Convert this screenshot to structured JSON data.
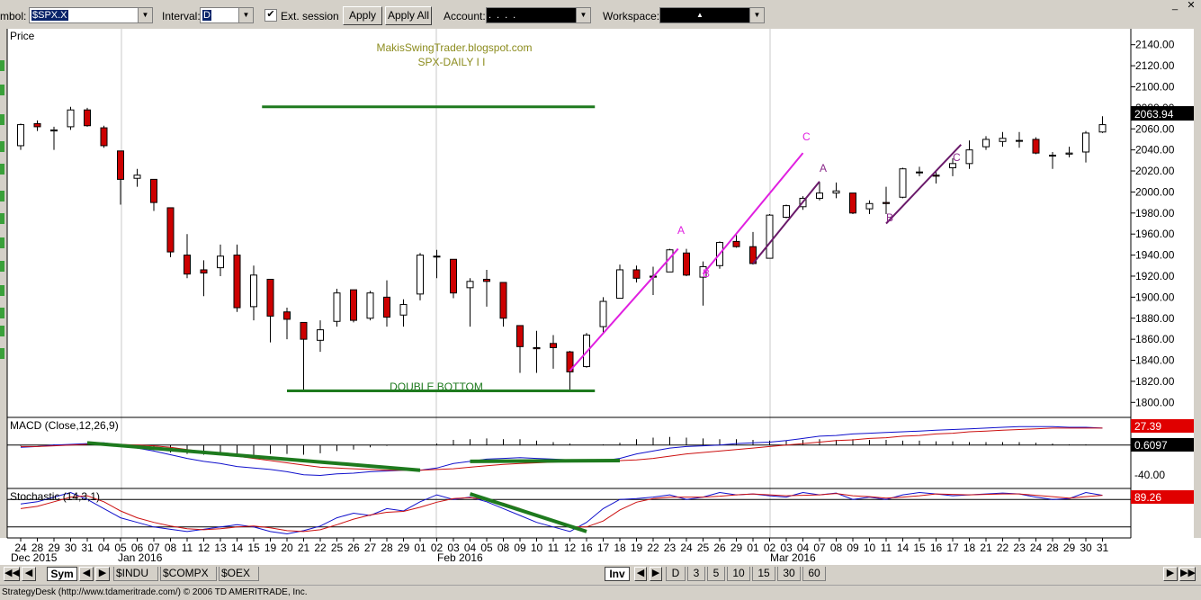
{
  "toolbar": {
    "symbol_label": "mbol:",
    "symbol_value": "$SPX.X",
    "interval_label": "Interval:",
    "interval_value": "D",
    "ext_session_label": "Ext. session",
    "ext_session_checked": "✔",
    "apply_label": "Apply",
    "apply_all_label": "Apply All",
    "account_label": "Account:",
    "account_value": "....",
    "workspace_label": "Workspace:",
    "workspace_value": "▲"
  },
  "chart_data": [
    {
      "type": "candlestick",
      "title": "Price",
      "annotations": [
        "MakisSwingTrader.blogspot.com",
        "SPX-DAILY  I I",
        "DOUBLE BOTTOM"
      ],
      "wave_labels": [
        "A",
        "B",
        "C",
        "A",
        "B",
        "C"
      ],
      "last_price": "2063.94",
      "ylim": [
        1790,
        2150
      ],
      "y_ticks": [
        2140,
        2120,
        2100,
        2080,
        2060,
        2040,
        2020,
        2000,
        1980,
        1960,
        1940,
        1920,
        1900,
        1880,
        1860,
        1840,
        1820,
        1800
      ],
      "y_tick_labels": [
        "2140.00",
        "2120.00",
        "2100.00",
        "2080.00",
        "2060.00",
        "2040.00",
        "2020.00",
        "2000.00",
        "1980.00",
        "1960.00",
        "1940.00",
        "1920.00",
        "1900.00",
        "1880.00",
        "1860.00",
        "1840.00",
        "1820.00",
        "1800.00"
      ],
      "x_ticks": [
        "24",
        "28",
        "29",
        "30",
        "31",
        "04",
        "05",
        "06",
        "07",
        "08",
        "11",
        "12",
        "13",
        "14",
        "15",
        "19",
        "20",
        "21",
        "22",
        "25",
        "26",
        "27",
        "28",
        "29",
        "01",
        "02",
        "03",
        "04",
        "05",
        "08",
        "09",
        "10",
        "11",
        "12",
        "16",
        "17",
        "18",
        "19",
        "22",
        "23",
        "24",
        "25",
        "26",
        "29",
        "01",
        "02",
        "03",
        "04",
        "07",
        "08",
        "09",
        "10",
        "11",
        "14",
        "15",
        "16",
        "17",
        "18",
        "21",
        "22",
        "23",
        "24",
        "28",
        "29",
        "30",
        "31"
      ],
      "month_labels": [
        "Dec 2015",
        "Jan 2016",
        "Feb 2016",
        "Mar 2016"
      ],
      "candles": [
        {
          "o": 2044,
          "h": 2065,
          "l": 2040,
          "c": 2064
        },
        {
          "o": 2065,
          "h": 2068,
          "l": 2058,
          "c": 2062
        },
        {
          "o": 2058,
          "h": 2062,
          "l": 2040,
          "c": 2059
        },
        {
          "o": 2062,
          "h": 2081,
          "l": 2059,
          "c": 2078
        },
        {
          "o": 2078,
          "h": 2080,
          "l": 2062,
          "c": 2063
        },
        {
          "o": 2061,
          "h": 2063,
          "l": 2042,
          "c": 2044
        },
        {
          "o": 2039,
          "h": 2039,
          "l": 1988,
          "c": 2012
        },
        {
          "o": 2013,
          "h": 2022,
          "l": 2005,
          "c": 2016
        },
        {
          "o": 2012,
          "h": 2012,
          "l": 1982,
          "c": 1990
        },
        {
          "o": 1985,
          "h": 1985,
          "l": 1938,
          "c": 1943
        },
        {
          "o": 1940,
          "h": 1960,
          "l": 1918,
          "c": 1922
        },
        {
          "o": 1926,
          "h": 1935,
          "l": 1901,
          "c": 1923
        },
        {
          "o": 1928,
          "h": 1950,
          "l": 1920,
          "c": 1939
        },
        {
          "o": 1940,
          "h": 1950,
          "l": 1886,
          "c": 1890
        },
        {
          "o": 1891,
          "h": 1930,
          "l": 1878,
          "c": 1921
        },
        {
          "o": 1917,
          "h": 1917,
          "l": 1857,
          "c": 1882
        },
        {
          "o": 1886,
          "h": 1890,
          "l": 1860,
          "c": 1879
        },
        {
          "o": 1876,
          "h": 1876,
          "l": 1812,
          "c": 1860
        },
        {
          "o": 1859,
          "h": 1878,
          "l": 1848,
          "c": 1869
        },
        {
          "o": 1877,
          "h": 1908,
          "l": 1872,
          "c": 1904
        },
        {
          "o": 1907,
          "h": 1907,
          "l": 1876,
          "c": 1878
        },
        {
          "o": 1880,
          "h": 1906,
          "l": 1878,
          "c": 1904
        },
        {
          "o": 1900,
          "h": 1916,
          "l": 1872,
          "c": 1881
        },
        {
          "o": 1883,
          "h": 1898,
          "l": 1872,
          "c": 1893
        },
        {
          "o": 1903,
          "h": 1942,
          "l": 1897,
          "c": 1940
        },
        {
          "o": 1939,
          "h": 1945,
          "l": 1918,
          "c": 1939
        },
        {
          "o": 1936,
          "h": 1936,
          "l": 1899,
          "c": 1904
        },
        {
          "o": 1909,
          "h": 1918,
          "l": 1872,
          "c": 1915
        },
        {
          "o": 1917,
          "h": 1926,
          "l": 1891,
          "c": 1915
        },
        {
          "o": 1914,
          "h": 1914,
          "l": 1872,
          "c": 1880
        },
        {
          "o": 1873,
          "h": 1873,
          "l": 1828,
          "c": 1853
        },
        {
          "o": 1852,
          "h": 1868,
          "l": 1828,
          "c": 1851
        },
        {
          "o": 1856,
          "h": 1864,
          "l": 1832,
          "c": 1852
        },
        {
          "o": 1848,
          "h": 1849,
          "l": 1810,
          "c": 1829
        },
        {
          "o": 1834,
          "h": 1866,
          "l": 1833,
          "c": 1864
        },
        {
          "o": 1872,
          "h": 1900,
          "l": 1865,
          "c": 1896
        },
        {
          "o": 1899,
          "h": 1931,
          "l": 1899,
          "c": 1926
        },
        {
          "o": 1926,
          "h": 1930,
          "l": 1914,
          "c": 1918
        },
        {
          "o": 1920,
          "h": 1929,
          "l": 1902,
          "c": 1919
        },
        {
          "o": 1924,
          "h": 1946,
          "l": 1924,
          "c": 1945
        },
        {
          "o": 1942,
          "h": 1946,
          "l": 1920,
          "c": 1921
        },
        {
          "o": 1919,
          "h": 1934,
          "l": 1892,
          "c": 1929
        },
        {
          "o": 1930,
          "h": 1953,
          "l": 1927,
          "c": 1952
        },
        {
          "o": 1953,
          "h": 1959,
          "l": 1947,
          "c": 1948
        },
        {
          "o": 1948,
          "h": 1962,
          "l": 1931,
          "c": 1932
        },
        {
          "o": 1937,
          "h": 1979,
          "l": 1937,
          "c": 1978
        },
        {
          "o": 1976,
          "h": 1988,
          "l": 1975,
          "c": 1987
        },
        {
          "o": 1986,
          "h": 1996,
          "l": 1983,
          "c": 1994
        },
        {
          "o": 1994,
          "h": 2009,
          "l": 1992,
          "c": 1999
        },
        {
          "o": 1999,
          "h": 2009,
          "l": 1994,
          "c": 2001
        },
        {
          "o": 1999,
          "h": 1999,
          "l": 1979,
          "c": 1980
        },
        {
          "o": 1984,
          "h": 1992,
          "l": 1979,
          "c": 1989
        },
        {
          "o": 1990,
          "h": 2005,
          "l": 1979,
          "c": 1989
        },
        {
          "o": 1995,
          "h": 2023,
          "l": 1994,
          "c": 2022
        },
        {
          "o": 2019,
          "h": 2024,
          "l": 2015,
          "c": 2019
        },
        {
          "o": 2016,
          "h": 2019,
          "l": 2008,
          "c": 2015
        },
        {
          "o": 2023,
          "h": 2032,
          "l": 2015,
          "c": 2027
        },
        {
          "o": 2027,
          "h": 2049,
          "l": 2022,
          "c": 2040
        },
        {
          "o": 2043,
          "h": 2053,
          "l": 2040,
          "c": 2050
        },
        {
          "o": 2048,
          "h": 2057,
          "l": 2043,
          "c": 2051
        },
        {
          "o": 2049,
          "h": 2057,
          "l": 2042,
          "c": 2049
        },
        {
          "o": 2050,
          "h": 2052,
          "l": 2036,
          "c": 2037
        },
        {
          "o": 2035,
          "h": 2038,
          "l": 2022,
          "c": 2035
        },
        {
          "o": 2036,
          "h": 2043,
          "l": 2033,
          "c": 2037
        },
        {
          "o": 2038,
          "h": 2058,
          "l": 2028,
          "c": 2056
        },
        {
          "o": 2057,
          "h": 2072,
          "l": 2056,
          "c": 2064
        }
      ]
    },
    {
      "type": "line",
      "title": "MACD (Close,12,26,9)",
      "ylim": [
        -55,
        35
      ],
      "y_tick_labels": [
        "27.39",
        "0.6097",
        "-40.00"
      ],
      "series": [
        {
          "values": [
            -3,
            -2,
            0,
            1,
            2,
            3,
            0,
            -4,
            -8,
            -13,
            -18,
            -22,
            -25,
            -29,
            -31,
            -33,
            -36,
            -40,
            -41,
            -39,
            -38,
            -36,
            -35,
            -34,
            -34,
            -31,
            -25,
            -22,
            -19,
            -18,
            -17,
            -18,
            -19,
            -20,
            -22,
            -21,
            -18,
            -12,
            -8,
            -4,
            -2,
            -1,
            0,
            2,
            3,
            4,
            6,
            9,
            12,
            13,
            15,
            16,
            17,
            18,
            19,
            20,
            21,
            22,
            23,
            24,
            25,
            25,
            25,
            24,
            24,
            23
          ]
        },
        {
          "values": [
            -2,
            -2,
            -1,
            0,
            1,
            1,
            1,
            0,
            -1,
            -3,
            -6,
            -9,
            -12,
            -15,
            -18,
            -21,
            -24,
            -27,
            -30,
            -31,
            -32,
            -33,
            -34,
            -34,
            -34,
            -33,
            -32,
            -30,
            -28,
            -26,
            -25,
            -24,
            -23,
            -22,
            -22,
            -22,
            -21,
            -20,
            -18,
            -15,
            -12,
            -10,
            -8,
            -6,
            -4,
            -2,
            0,
            2,
            4,
            6,
            7,
            9,
            10,
            12,
            13,
            15,
            16,
            18,
            19,
            20,
            21,
            22,
            23,
            23,
            23,
            23
          ]
        },
        {
          "values": [
            -1,
            0,
            1,
            1,
            1,
            2,
            -1,
            -4,
            -7,
            -10,
            -12,
            -13,
            -13,
            -14,
            -13,
            -12,
            -12,
            -13,
            -11,
            -8,
            -6,
            -3,
            -1,
            0,
            0,
            2,
            7,
            8,
            9,
            8,
            8,
            6,
            4,
            2,
            0,
            1,
            3,
            8,
            10,
            11,
            10,
            9,
            8,
            8,
            7,
            6,
            6,
            7,
            8,
            7,
            8,
            7,
            7,
            6,
            6,
            5,
            5,
            4,
            4,
            4,
            4,
            3,
            2,
            1,
            1,
            0
          ]
        }
      ]
    },
    {
      "type": "line",
      "title": "Stochastic (14,3,1)",
      "ylim": [
        0,
        100
      ],
      "y_tick_labels": [
        "89.26"
      ],
      "series": [
        {
          "values": [
            70,
            75,
            85,
            95,
            80,
            60,
            40,
            30,
            20,
            15,
            10,
            15,
            20,
            25,
            20,
            10,
            5,
            12,
            22,
            40,
            50,
            45,
            60,
            55,
            75,
            90,
            80,
            85,
            75,
            60,
            45,
            30,
            20,
            10,
            30,
            60,
            80,
            82,
            85,
            90,
            80,
            85,
            95,
            90,
            92,
            88,
            85,
            95,
            90,
            94,
            80,
            85,
            80,
            90,
            95,
            92,
            88,
            90,
            92,
            94,
            92,
            85,
            80,
            82,
            95,
            89
          ]
        },
        {
          "values": [
            60,
            65,
            75,
            85,
            88,
            75,
            55,
            40,
            30,
            22,
            16,
            14,
            16,
            20,
            22,
            18,
            12,
            10,
            14,
            25,
            37,
            46,
            52,
            54,
            63,
            74,
            82,
            84,
            80,
            72,
            60,
            45,
            32,
            20,
            20,
            33,
            57,
            74,
            82,
            85,
            85,
            85,
            87,
            90,
            92,
            90,
            88,
            89,
            90,
            93,
            88,
            86,
            83,
            85,
            88,
            92,
            91,
            90,
            91,
            92,
            92,
            89,
            86,
            83,
            86,
            89
          ]
        }
      ]
    }
  ],
  "bottom_bar": {
    "sym_tab": "Sym",
    "tabs": [
      "$INDU",
      "$COMPX",
      "$OEX"
    ],
    "inv_tab": "Inv",
    "intervals": [
      "D",
      "3",
      "5",
      "10",
      "15",
      "30",
      "60"
    ]
  },
  "status": "StrategyDesk (http://www.tdameritrade.com/) © 2006 TD AMERITRADE, Inc.",
  "colors": {
    "candle_down": "#cc0000",
    "candle_up": "#ffffff",
    "green_line": "#1e7a1e",
    "magenta_line": "#e020e0",
    "purple_line": "#6a1a6a",
    "macd_line": "#1010cc",
    "signal_line": "#cc1010",
    "last_price_bg": "#000000",
    "macd_badge_bg": "#e00000",
    "stoch_badge_bg": "#e00000",
    "annotation_text": "#8c8c1e"
  }
}
